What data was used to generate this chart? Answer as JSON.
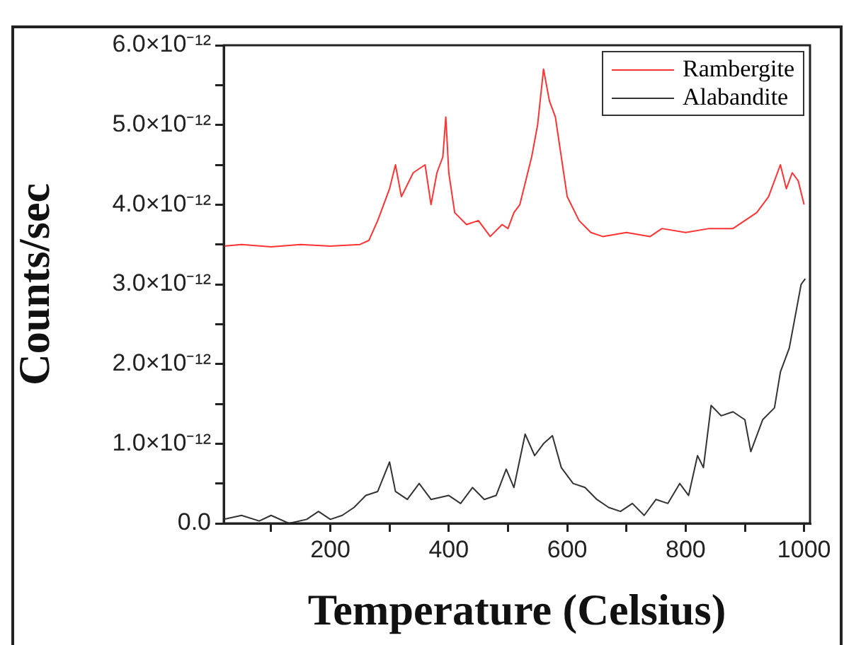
{
  "chart_data": {
    "type": "line",
    "xlabel": "Temperature (Celsius)",
    "ylabel": "Counts/sec",
    "xlim": [
      20,
      1010
    ],
    "xticks": [
      {
        "value": 100,
        "label": null
      },
      200,
      {
        "value": 300,
        "label": null
      },
      400,
      {
        "value": 500,
        "label": null
      },
      600,
      {
        "value": 700,
        "label": null
      },
      800,
      {
        "value": 900,
        "label": null
      },
      1000
    ],
    "ylim": [
      0,
      6e-12
    ],
    "yticks": [
      {
        "value": 0,
        "label": "0.0"
      },
      {
        "value": 5e-13,
        "label": null
      },
      {
        "value": 1e-12,
        "label": "1.0×10⁻¹²"
      },
      {
        "value": 1.5e-12,
        "label": null
      },
      {
        "value": 2e-12,
        "label": "2.0×10⁻¹²"
      },
      {
        "value": 2.5e-12,
        "label": null
      },
      {
        "value": 3e-12,
        "label": "3.0×10⁻¹²"
      },
      {
        "value": 3.5e-12,
        "label": null
      },
      {
        "value": 4e-12,
        "label": "4.0×10⁻¹²"
      },
      {
        "value": 4.5e-12,
        "label": null
      },
      {
        "value": 5e-12,
        "label": "5.0×10⁻¹²"
      },
      {
        "value": 5.5e-12,
        "label": null
      },
      {
        "value": 6e-12,
        "label": "6.0×10⁻¹²"
      }
    ],
    "grid": false,
    "legend": "top right",
    "marker": "none",
    "line_style": "solid",
    "series": [
      {
        "name": "Rambergite",
        "color": "#ff3333",
        "x": [
          20,
          50,
          100,
          150,
          200,
          250,
          265,
          280,
          300,
          310,
          320,
          340,
          360,
          370,
          380,
          390,
          395,
          400,
          410,
          430,
          450,
          470,
          490,
          500,
          510,
          520,
          530,
          540,
          550,
          560,
          570,
          580,
          590,
          600,
          620,
          640,
          660,
          700,
          740,
          760,
          800,
          840,
          880,
          900,
          920,
          940,
          960,
          970,
          980,
          990,
          1000
        ],
        "values": [
          3.48e-12,
          3.5e-12,
          3.47e-12,
          3.5e-12,
          3.48e-12,
          3.5e-12,
          3.55e-12,
          3.8e-12,
          4.2e-12,
          4.5e-12,
          4.1e-12,
          4.4e-12,
          4.5e-12,
          4e-12,
          4.4e-12,
          4.6e-12,
          5.1e-12,
          4.4e-12,
          3.9e-12,
          3.75e-12,
          3.8e-12,
          3.6e-12,
          3.75e-12,
          3.7e-12,
          3.9e-12,
          4e-12,
          4.3e-12,
          4.6e-12,
          5e-12,
          5.7e-12,
          5.3e-12,
          5.1e-12,
          4.6e-12,
          4.1e-12,
          3.8e-12,
          3.65e-12,
          3.6e-12,
          3.65e-12,
          3.6e-12,
          3.7e-12,
          3.65e-12,
          3.7e-12,
          3.7e-12,
          3.8e-12,
          3.9e-12,
          4.1e-12,
          4.5e-12,
          4.2e-12,
          4.4e-12,
          4.3e-12,
          4e-12
        ]
      },
      {
        "name": "Alabandite",
        "color": "#333333",
        "x": [
          20,
          50,
          80,
          100,
          130,
          160,
          180,
          200,
          220,
          240,
          260,
          280,
          300,
          310,
          330,
          350,
          370,
          400,
          420,
          440,
          460,
          480,
          497,
          510,
          529,
          545,
          560,
          575,
          590,
          610,
          630,
          650,
          670,
          690,
          710,
          730,
          750,
          770,
          790,
          805,
          820,
          830,
          843,
          860,
          880,
          900,
          910,
          930,
          950,
          960,
          975,
          985,
          995,
          1002
        ],
        "values": [
          5e-14,
          1e-13,
          3e-14,
          1e-13,
          0,
          5e-14,
          1.5e-13,
          5e-14,
          1e-13,
          2e-13,
          3.5e-13,
          4e-13,
          7.7e-13,
          4e-13,
          3e-13,
          5e-13,
          3e-13,
          3.5e-13,
          2.5e-13,
          4.5e-13,
          3e-13,
          3.5e-13,
          6.8e-13,
          4.5e-13,
          1.12e-12,
          8.5e-13,
          1e-12,
          1.1e-12,
          7e-13,
          5e-13,
          4.5e-13,
          3e-13,
          2e-13,
          1.5e-13,
          2.5e-13,
          1e-13,
          3e-13,
          2.5e-13,
          5e-13,
          3.5e-13,
          8.5e-13,
          7e-13,
          1.48e-12,
          1.35e-12,
          1.4e-12,
          1.3e-12,
          9e-13,
          1.3e-12,
          1.45e-12,
          1.9e-12,
          2.2e-12,
          2.6e-12,
          3e-12,
          3.07e-12
        ]
      }
    ]
  }
}
